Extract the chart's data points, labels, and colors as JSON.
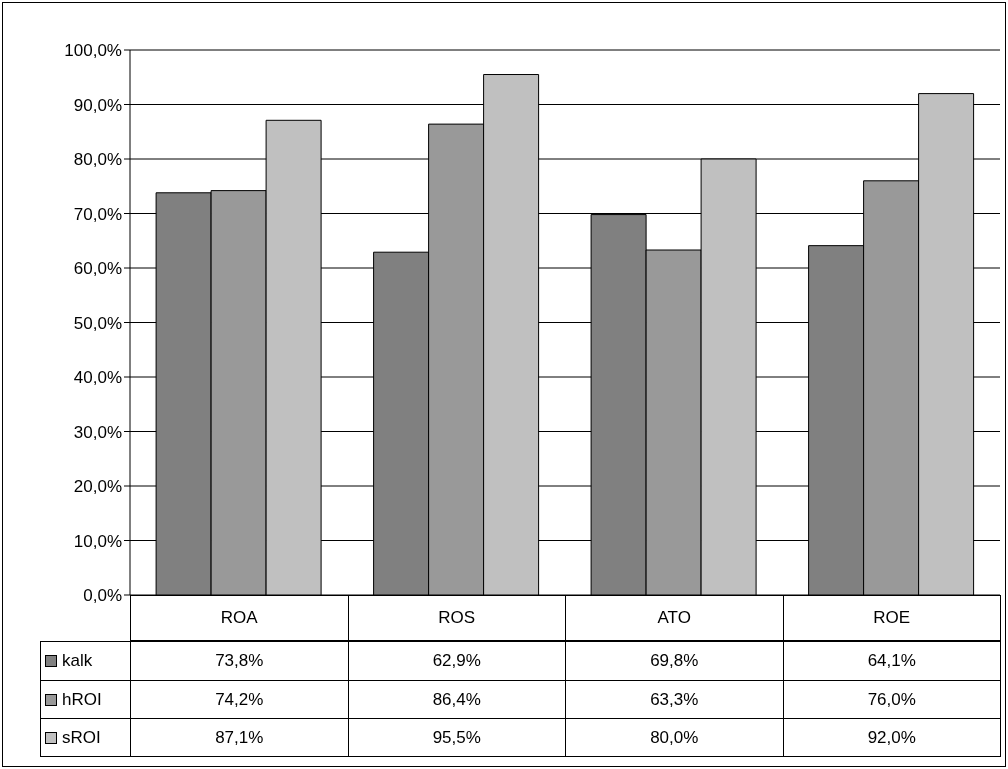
{
  "chart_data": {
    "type": "bar",
    "categories": [
      "ROA",
      "ROS",
      "ATO",
      "ROE"
    ],
    "series": [
      {
        "name": "kalk",
        "color": "#808080",
        "values": [
          73.8,
          62.9,
          69.8,
          64.1
        ],
        "value_labels": [
          "73,8%",
          "62,9%",
          "69,8%",
          "64,1%"
        ]
      },
      {
        "name": "hROI",
        "color": "#999999",
        "values": [
          74.2,
          86.4,
          63.3,
          76.0
        ],
        "value_labels": [
          "74,2%",
          "86,4%",
          "63,3%",
          "76,0%"
        ]
      },
      {
        "name": "sROI",
        "color": "#c0c0c0",
        "values": [
          87.1,
          95.5,
          80.0,
          92.0
        ],
        "value_labels": [
          "87,1%",
          "95,5%",
          "80,0%",
          "92,0%"
        ]
      }
    ],
    "ylim": [
      0,
      100
    ],
    "yticks": [
      {
        "value": 0,
        "label": "0,0%"
      },
      {
        "value": 10,
        "label": "10,0%"
      },
      {
        "value": 20,
        "label": "20,0%"
      },
      {
        "value": 30,
        "label": "30,0%"
      },
      {
        "value": 40,
        "label": "40,0%"
      },
      {
        "value": 50,
        "label": "50,0%"
      },
      {
        "value": 60,
        "label": "60,0%"
      },
      {
        "value": 70,
        "label": "70,0%"
      },
      {
        "value": 80,
        "label": "80,0%"
      },
      {
        "value": 90,
        "label": "90,0%"
      },
      {
        "value": 100,
        "label": "100,0%"
      }
    ],
    "grid": "y",
    "legend": "bottom"
  }
}
